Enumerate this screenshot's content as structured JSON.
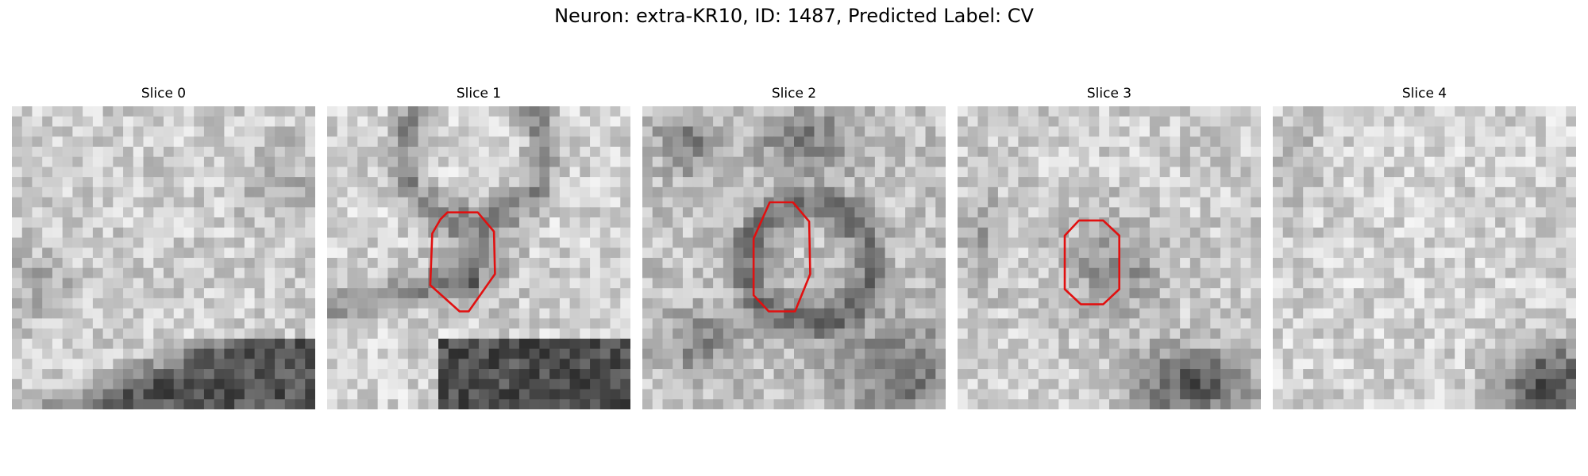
{
  "figure": {
    "title": "Neuron: extra-KR10, ID: 1487, Predicted Label: CV"
  },
  "slices": [
    {
      "title": "Slice 0",
      "has_contour": false,
      "dark_region": "bottom-right",
      "contour_color": "#e11010"
    },
    {
      "title": "Slice 1",
      "has_contour": true,
      "dark_region": "bottom-right",
      "contour_color": "#e11010"
    },
    {
      "title": "Slice 2",
      "has_contour": true,
      "dark_region": "bottom-right",
      "contour_color": "#e11010"
    },
    {
      "title": "Slice 3",
      "has_contour": true,
      "dark_region": "bottom-right",
      "contour_color": "#e11010"
    },
    {
      "title": "Slice 4",
      "has_contour": false,
      "dark_region": "bottom-right",
      "contour_color": "#e11010"
    }
  ]
}
